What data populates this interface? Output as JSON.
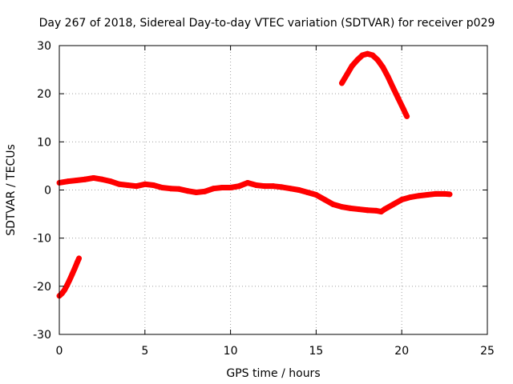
{
  "chart_data": {
    "type": "scatter",
    "title": "Day 267 of 2018, Sidereal Day-to-day VTEC variation (SDTVAR) for receiver p029",
    "xlabel": "GPS time / hours",
    "ylabel": "SDTVAR / TECUs",
    "xlim": [
      0,
      25
    ],
    "ylim": [
      -30,
      30
    ],
    "xticks": [
      0,
      5,
      10,
      15,
      20,
      25
    ],
    "yticks": [
      -30,
      -20,
      -10,
      0,
      10,
      20,
      30
    ],
    "grid": true,
    "legend": "none",
    "marker": "plus",
    "series": [
      {
        "name": "arc-1",
        "color": "#ff0000",
        "x": [
          0.0,
          0.15,
          0.3,
          0.45,
          0.6,
          0.75,
          0.9,
          1.05,
          1.15
        ],
        "y": [
          -22.0,
          -21.5,
          -20.8,
          -19.8,
          -18.7,
          -17.5,
          -16.3,
          -15.0,
          -14.2
        ]
      },
      {
        "name": "arc-2",
        "color": "#ff0000",
        "x": [
          0.0,
          0.5,
          1.0,
          1.5,
          2.0,
          2.5,
          3.0,
          3.5,
          4.0,
          4.5,
          5.0,
          5.5,
          6.0,
          6.5,
          7.0,
          7.5,
          8.0,
          8.5,
          9.0,
          9.5,
          10.0,
          10.5,
          11.0,
          11.5,
          12.0,
          12.5,
          13.0,
          13.5,
          14.0,
          14.5,
          15.0,
          15.5,
          16.0,
          16.5,
          17.0,
          17.5,
          18.0,
          18.5,
          18.8,
          19.0,
          19.5,
          20.0,
          20.5,
          21.0,
          21.5,
          22.0,
          22.5,
          22.8
        ],
        "y": [
          1.5,
          1.8,
          2.0,
          2.2,
          2.5,
          2.2,
          1.8,
          1.2,
          1.0,
          0.8,
          1.2,
          1.0,
          0.5,
          0.3,
          0.2,
          -0.2,
          -0.5,
          -0.3,
          0.3,
          0.5,
          0.5,
          0.8,
          1.5,
          1.0,
          0.8,
          0.8,
          0.6,
          0.3,
          0.0,
          -0.5,
          -1.0,
          -2.0,
          -3.0,
          -3.5,
          -3.8,
          -4.0,
          -4.2,
          -4.3,
          -4.5,
          -4.0,
          -3.0,
          -2.0,
          -1.5,
          -1.2,
          -1.0,
          -0.8,
          -0.8,
          -0.9
        ]
      },
      {
        "name": "arc-3",
        "color": "#ff0000",
        "x": [
          16.5,
          16.8,
          17.1,
          17.4,
          17.7,
          18.0,
          18.3,
          18.6,
          18.9,
          19.2,
          19.5,
          19.8,
          20.1,
          20.3
        ],
        "y": [
          22.2,
          24.0,
          25.8,
          27.0,
          28.0,
          28.3,
          28.0,
          27.0,
          25.5,
          23.5,
          21.2,
          19.0,
          16.8,
          15.3
        ]
      }
    ]
  }
}
